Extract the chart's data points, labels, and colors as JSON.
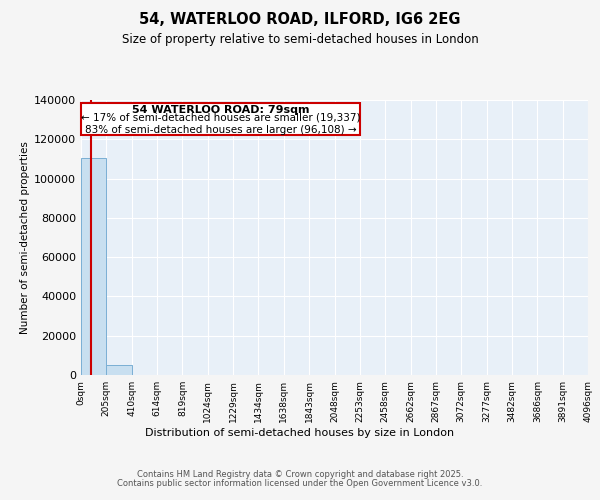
{
  "title": "54, WATERLOO ROAD, ILFORD, IG6 2EG",
  "subtitle": "Size of property relative to semi-detached houses in London",
  "xlabel": "Distribution of semi-detached houses by size in London",
  "ylabel": "Number of semi-detached properties",
  "property_size_sqm": 79,
  "property_label": "54 WATERLOO ROAD: 79sqm",
  "annotation_smaller": "← 17% of semi-detached houses are smaller (19,337)",
  "annotation_larger": "83% of semi-detached houses are larger (96,108) →",
  "bar_color": "#c8dff0",
  "bar_edge_color": "#7aafd4",
  "property_line_color": "#cc0000",
  "annotation_box_edgecolor": "#cc0000",
  "footer1": "Contains HM Land Registry data © Crown copyright and database right 2025.",
  "footer2": "Contains public sector information licensed under the Open Government Licence v3.0.",
  "bin_labels": [
    "0sqm",
    "205sqm",
    "410sqm",
    "614sqm",
    "819sqm",
    "1024sqm",
    "1229sqm",
    "1434sqm",
    "1638sqm",
    "1843sqm",
    "2048sqm",
    "2253sqm",
    "2458sqm",
    "2662sqm",
    "2867sqm",
    "3072sqm",
    "3277sqm",
    "3482sqm",
    "3686sqm",
    "3891sqm",
    "4096sqm"
  ],
  "bar_counts": [
    110500,
    5000,
    100,
    20,
    5,
    2,
    1,
    1,
    0,
    0,
    0,
    0,
    0,
    0,
    0,
    0,
    0,
    0,
    0,
    0
  ],
  "ylim": [
    0,
    140000
  ],
  "yticks": [
    0,
    20000,
    40000,
    60000,
    80000,
    100000,
    120000,
    140000
  ],
  "ytick_labels": [
    "0",
    "20000",
    "40000",
    "60000",
    "80000",
    "100000",
    "120000",
    "140000"
  ],
  "background_color": "#f5f5f5",
  "plot_bg_color": "#e8f0f8"
}
